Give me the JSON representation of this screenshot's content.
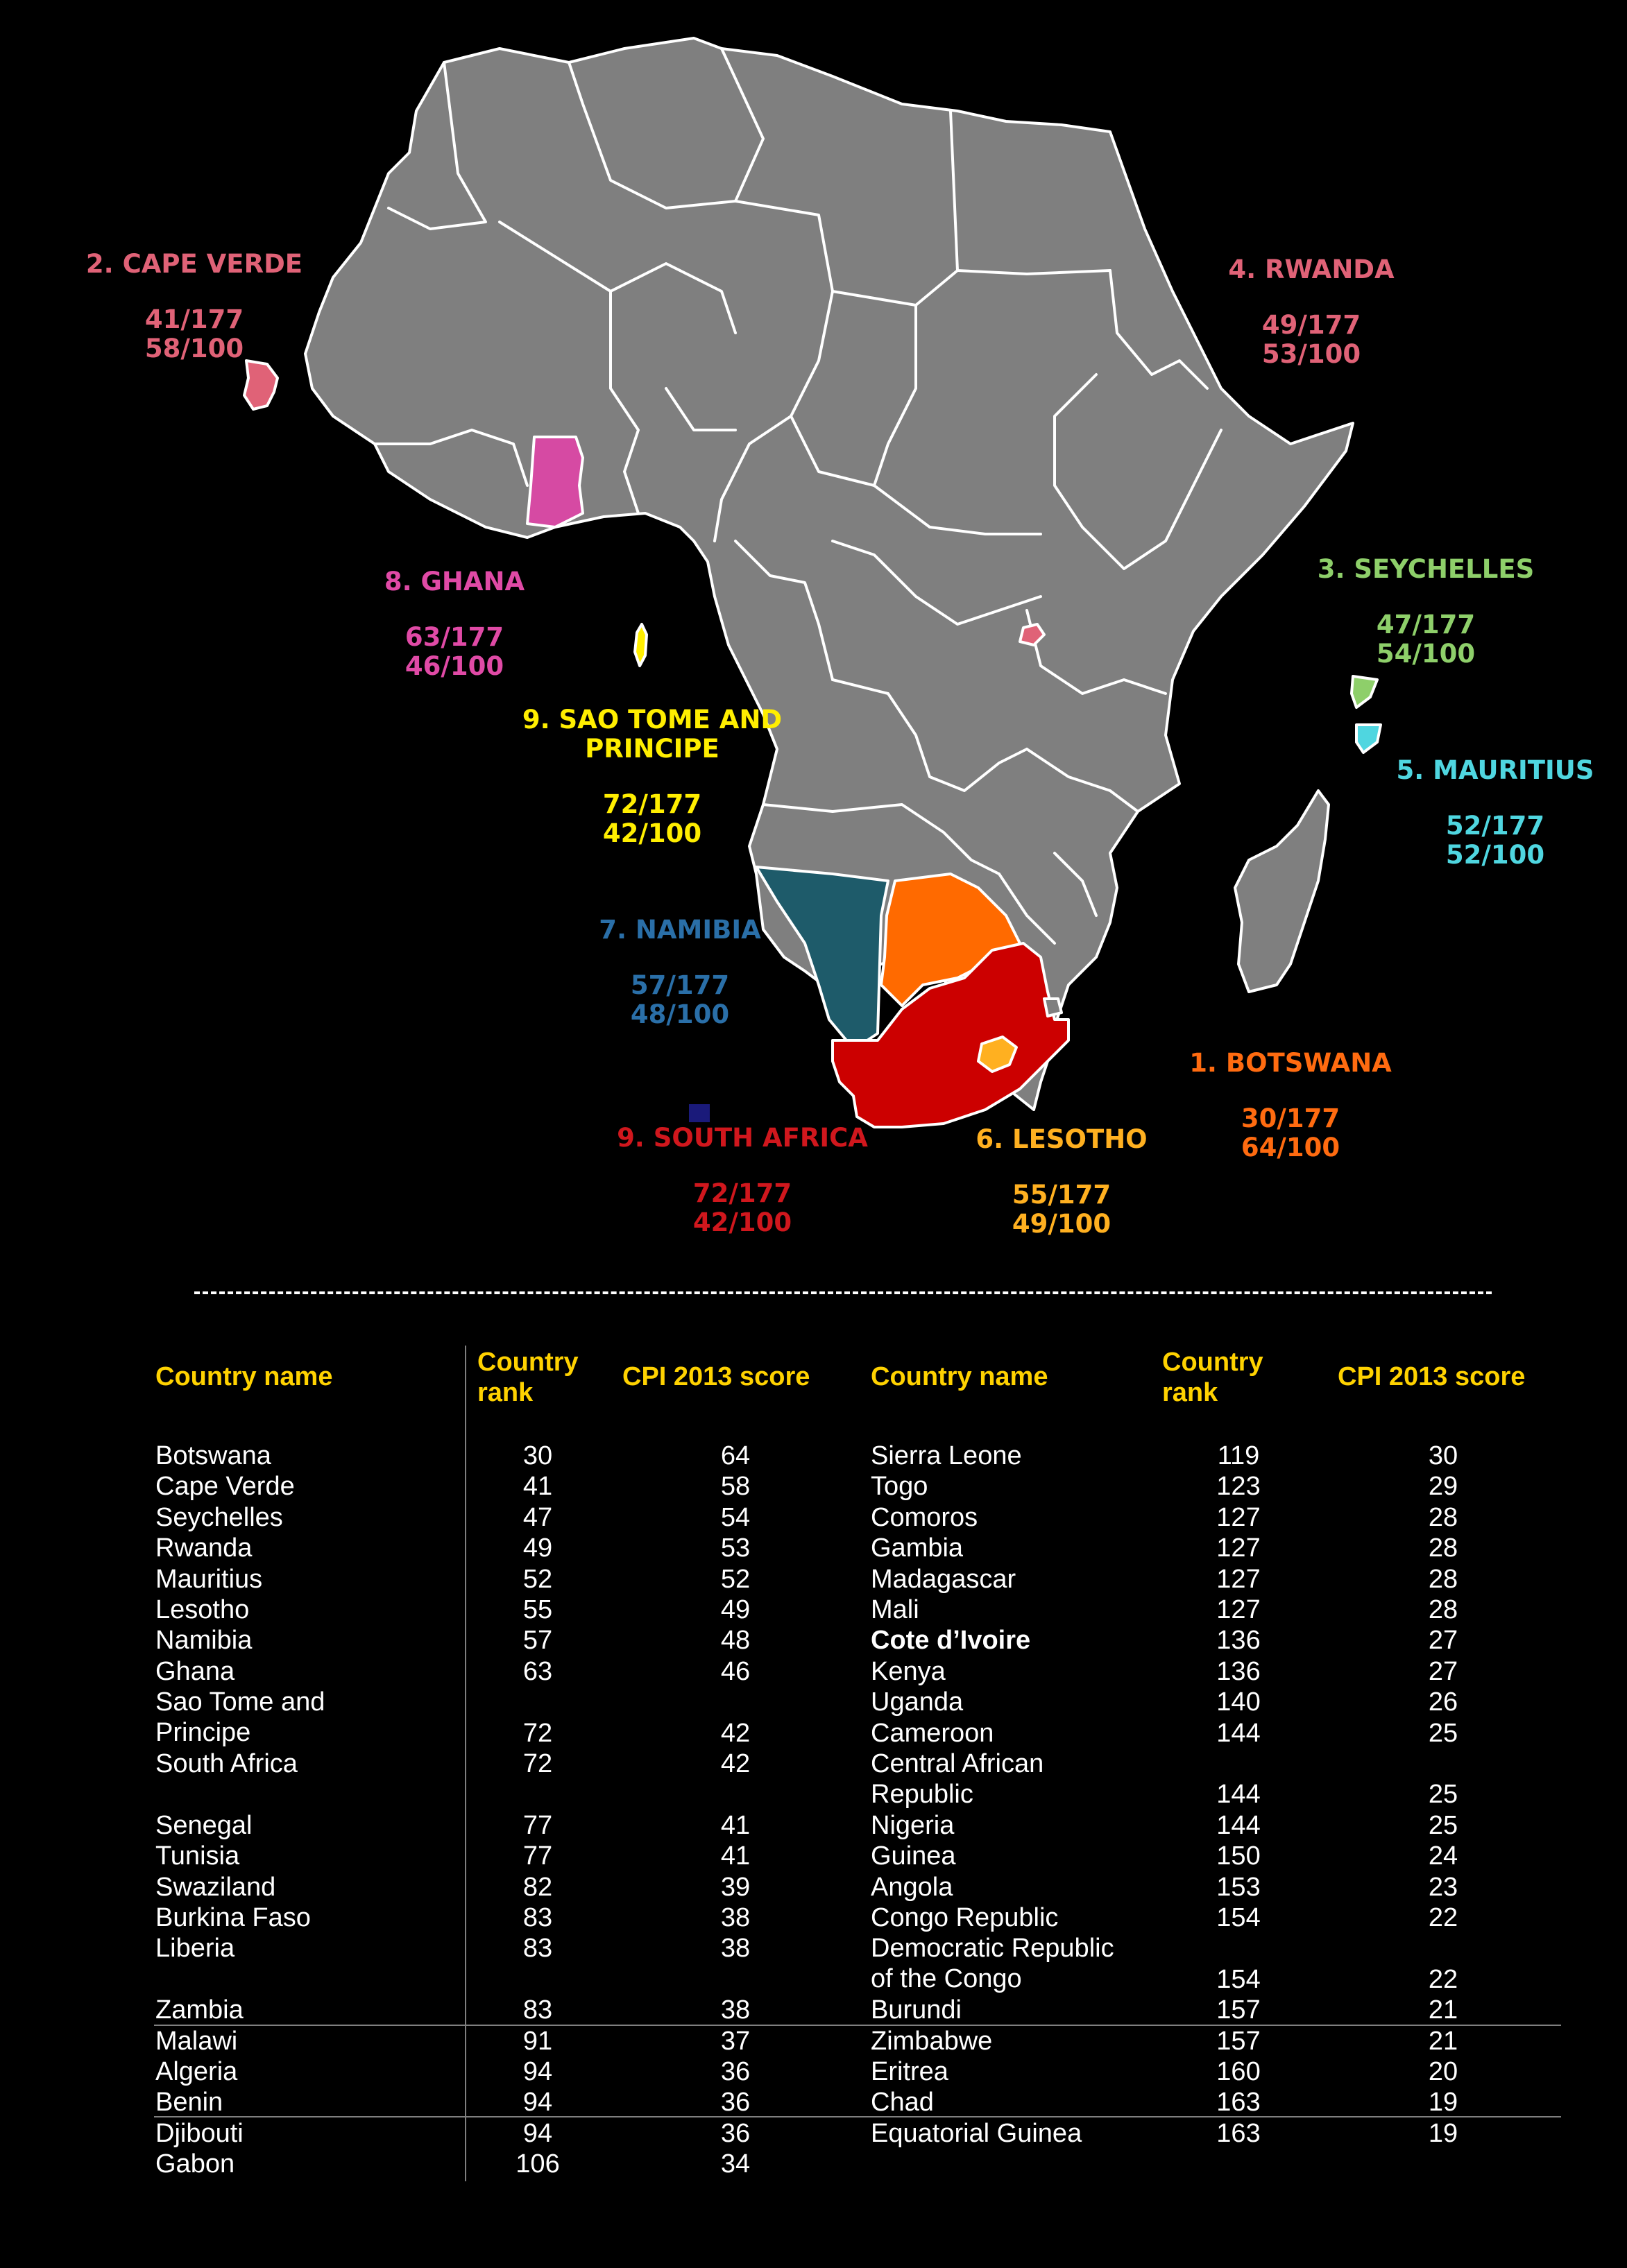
{
  "map": {
    "callouts": [
      {
        "id": "cape-verde",
        "name": "2. CAPE VERDE",
        "rank": "41/177",
        "score": "58/100",
        "color": "#e06277"
      },
      {
        "id": "rwanda",
        "name": "4. RWANDA",
        "rank": "49/177",
        "score": "53/100",
        "color": "#e06277"
      },
      {
        "id": "seychelles",
        "name": "3. SEYCHELLES",
        "rank": "47/177",
        "score": "54/100",
        "color": "#8ecf6a"
      },
      {
        "id": "mauritius",
        "name": "5. MAURITIUS",
        "rank": "52/177",
        "score": "52/100",
        "color": "#4fd6e0"
      },
      {
        "id": "ghana",
        "name": "8. GHANA",
        "rank": "63/177",
        "score": "46/100",
        "color": "#e04aa6"
      },
      {
        "id": "sao-tome",
        "name": "9. SAO TOME AND\nPRINCIPE",
        "rank": "72/177",
        "score": "42/100",
        "color": "#ffee00"
      },
      {
        "id": "namibia",
        "name": "7. NAMIBIA",
        "rank": "57/177",
        "score": "48/100",
        "color": "#2a6fa8"
      },
      {
        "id": "south-africa",
        "name": "9. SOUTH AFRICA",
        "rank": "72/177",
        "score": "42/100",
        "color": "#d0171d"
      },
      {
        "id": "lesotho",
        "name": "6. LESOTHO",
        "rank": "55/177",
        "score": "49/100",
        "color": "#ffb020"
      },
      {
        "id": "botswana",
        "name": "1. BOTSWANA",
        "rank": "30/177",
        "score": "64/100",
        "color": "#ff6b10"
      }
    ],
    "fills": {
      "land": "#7f7f7f",
      "ghana": "#d64aa3",
      "namibia": "#1e5b6a",
      "botswana": "#ff6a00",
      "south_africa": "#cc0000",
      "lesotho": "#ffb020",
      "rwanda": "#e06277",
      "sao_tome": "#ffee00",
      "seychelles": "#8ecf6a",
      "mauritius": "#4fd6e0",
      "cape_verde": "#e06277"
    }
  },
  "table": {
    "headers": {
      "country_name": "Country name",
      "country_rank": "Country\nrank",
      "cpi_score": "CPI 2013 score"
    },
    "left": [
      {
        "name": "Botswana",
        "rank": "30",
        "score": "64"
      },
      {
        "name": "Cape Verde",
        "rank": "41",
        "score": "58"
      },
      {
        "name": "Seychelles",
        "rank": "47",
        "score": "54"
      },
      {
        "name": "Rwanda",
        "rank": "49",
        "score": "53"
      },
      {
        "name": "Mauritius",
        "rank": "52",
        "score": "52"
      },
      {
        "name": "Lesotho",
        "rank": "55",
        "score": "49"
      },
      {
        "name": "Namibia",
        "rank": "57",
        "score": "48"
      },
      {
        "name": "Ghana",
        "rank": "63",
        "score": "46"
      },
      {
        "name": "Sao Tome and\nPrincipe",
        "rank": "72",
        "score": "42"
      },
      {
        "name": "South Africa",
        "rank": "72",
        "score": "42"
      },
      {
        "name": "Senegal",
        "rank": "77",
        "score": "41"
      },
      {
        "name": "Tunisia",
        "rank": "77",
        "score": "41"
      },
      {
        "name": "Swaziland",
        "rank": "82",
        "score": "39"
      },
      {
        "name": "Burkina Faso",
        "rank": "83",
        "score": "38"
      },
      {
        "name": "Liberia",
        "rank": "83",
        "score": "38"
      },
      {
        "name": "Zambia",
        "rank": "83",
        "score": "38"
      },
      {
        "name": "Malawi",
        "rank": "91",
        "score": "37"
      },
      {
        "name": "Algeria",
        "rank": "94",
        "score": "36"
      },
      {
        "name": "Benin",
        "rank": "94",
        "score": "36"
      },
      {
        "name": "Djibouti",
        "rank": "94",
        "score": "36"
      },
      {
        "name": "Gabon",
        "rank": "106",
        "score": "34"
      }
    ],
    "right": [
      {
        "name": "Sierra Leone",
        "rank": "119",
        "score": "30"
      },
      {
        "name": "Togo",
        "rank": "123",
        "score": "29"
      },
      {
        "name": "Comoros",
        "rank": "127",
        "score": "28"
      },
      {
        "name": "Gambia",
        "rank": "127",
        "score": "28"
      },
      {
        "name": "Madagascar",
        "rank": "127",
        "score": "28"
      },
      {
        "name": "Mali",
        "rank": "127",
        "score": "28"
      },
      {
        "name": "Cote d’Ivoire",
        "rank": "136",
        "score": "27",
        "bold": true
      },
      {
        "name": "Kenya",
        "rank": "136",
        "score": "27"
      },
      {
        "name": "Uganda",
        "rank": "140",
        "score": "26"
      },
      {
        "name": "Cameroon",
        "rank": "144",
        "score": "25"
      },
      {
        "name": "Central African\nRepublic",
        "rank": "144",
        "score": "25"
      },
      {
        "name": "Nigeria",
        "rank": "144",
        "score": "25"
      },
      {
        "name": "Guinea",
        "rank": "150",
        "score": "24"
      },
      {
        "name": "Angola",
        "rank": "153",
        "score": "23"
      },
      {
        "name": "Congo Republic",
        "rank": "154",
        "score": "22"
      },
      {
        "name": "Democratic Republic\nof the Congo",
        "rank": "154",
        "score": "22"
      },
      {
        "name": "Burundi",
        "rank": "157",
        "score": "21"
      },
      {
        "name": "Zimbabwe",
        "rank": "157",
        "score": "21"
      },
      {
        "name": "Eritrea",
        "rank": "160",
        "score": "20"
      },
      {
        "name": "Chad",
        "rank": "163",
        "score": "19"
      },
      {
        "name": "Equatorial Guinea",
        "rank": "163",
        "score": "19"
      }
    ]
  }
}
